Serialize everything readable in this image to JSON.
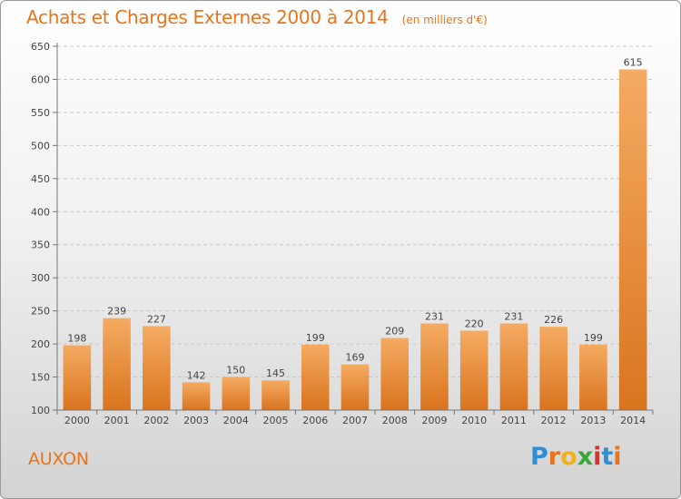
{
  "header": {
    "title": "Achats et Charges Externes 2000 à 2014",
    "subtitle": "(en milliers d'€)"
  },
  "footer": {
    "location": "AUXON",
    "logo_text": "Proxiti",
    "logo_colors": [
      "#2e8fd8",
      "#e8741b",
      "#f0b11a",
      "#3aa835",
      "#d6332e",
      "#2e8fd8",
      "#e8741b"
    ]
  },
  "colors": {
    "accent": "#e8741b",
    "bar_light": "#f5ab62",
    "bar_dark": "#d9741e"
  },
  "chart_data": {
    "type": "bar",
    "title": "Achats et Charges Externes 2000 à 2014",
    "subtitle": "(en milliers d'€)",
    "xlabel": "",
    "ylabel": "",
    "categories": [
      "2000",
      "2001",
      "2002",
      "2003",
      "2004",
      "2005",
      "2006",
      "2007",
      "2008",
      "2009",
      "2010",
      "2011",
      "2012",
      "2013",
      "2014"
    ],
    "values": [
      198,
      239,
      227,
      142,
      150,
      145,
      199,
      169,
      209,
      231,
      220,
      231,
      226,
      199,
      615
    ],
    "ylim": [
      100,
      650
    ],
    "yticks": [
      100,
      150,
      200,
      250,
      300,
      350,
      400,
      450,
      500,
      550,
      600,
      650
    ],
    "grid": "horizontal-dashed",
    "legend": "none"
  }
}
